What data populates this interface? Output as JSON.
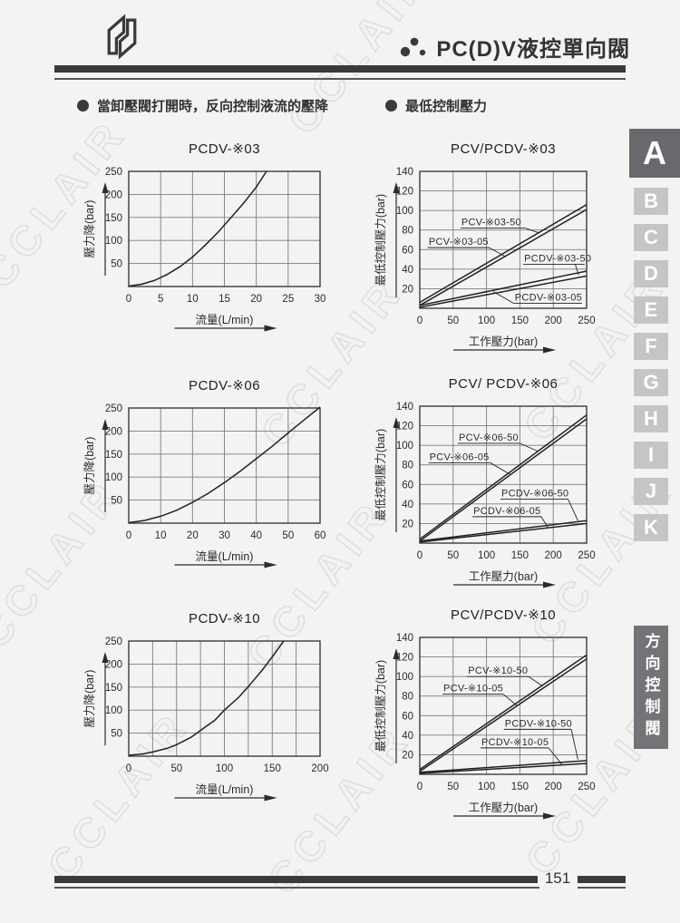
{
  "page": {
    "watermark_text": "CCLAIR"
  },
  "header": {
    "title": "PC(D)V液控單向閥"
  },
  "section_headers": [
    {
      "text": "當卸壓閥打開時，反向控制液流的壓降"
    },
    {
      "text": "最低控制壓力"
    }
  ],
  "sidebar": {
    "tabs": [
      {
        "label": "A",
        "active": true
      },
      {
        "label": "B",
        "active": false
      },
      {
        "label": "C",
        "active": false
      },
      {
        "label": "D",
        "active": false
      },
      {
        "label": "E",
        "active": false
      },
      {
        "label": "F",
        "active": false
      },
      {
        "label": "G",
        "active": false
      },
      {
        "label": "H",
        "active": false
      },
      {
        "label": "I",
        "active": false
      },
      {
        "label": "J",
        "active": false
      },
      {
        "label": "K",
        "active": false
      }
    ],
    "category_label": "方向控制閥"
  },
  "footer": {
    "page_number": "151"
  },
  "chart_data": [
    {
      "id": "pcdv-03",
      "type": "line",
      "title": "PCDV-※03",
      "xlabel": "流量(L/min)",
      "ylabel": "壓力降(bar)",
      "xlim": [
        0,
        30
      ],
      "ylim": [
        0,
        250
      ],
      "xticks": [
        0,
        5,
        10,
        15,
        20,
        25,
        30
      ],
      "yticks": [
        50,
        100,
        150,
        200,
        250
      ],
      "grid": true,
      "plot_size": [
        211,
        127
      ],
      "series": [
        {
          "name": "PCDV-※03",
          "points": [
            [
              0,
              1
            ],
            [
              2,
              5
            ],
            [
              4,
              13
            ],
            [
              6,
              26
            ],
            [
              8,
              43
            ],
            [
              10,
              64
            ],
            [
              12,
              90
            ],
            [
              14,
              118
            ],
            [
              16,
              149
            ],
            [
              18,
              181
            ],
            [
              20,
              216
            ],
            [
              21.6,
              250
            ]
          ]
        }
      ],
      "labels": []
    },
    {
      "id": "pcv-pcdv-03",
      "type": "line",
      "title": "PCV/PCDV-※03",
      "xlabel": "工作壓力(bar)",
      "ylabel": "最低控制壓力(bar)",
      "xlim": [
        0,
        250
      ],
      "ylim": [
        0,
        140
      ],
      "xticks": [
        0,
        50,
        100,
        150,
        200,
        250
      ],
      "yticks": [
        20,
        40,
        60,
        80,
        100,
        120,
        140
      ],
      "grid": true,
      "plot_size": [
        184,
        151
      ],
      "series": [
        {
          "name": "PCV-※03-50",
          "points": [
            [
              0,
              6
            ],
            [
              250,
              106
            ]
          ]
        },
        {
          "name": "PCV-※03-05",
          "points": [
            [
              0,
              3
            ],
            [
              250,
              101
            ]
          ]
        },
        {
          "name": "PCDV-※03-50",
          "points": [
            [
              0,
              3
            ],
            [
              250,
              38
            ]
          ]
        },
        {
          "name": "PCDV-※03-05",
          "points": [
            [
              0,
              1
            ],
            [
              250,
              33
            ]
          ]
        }
      ],
      "labels": [
        {
          "text": "PCV-※03-50",
          "underline": [
            [
              61,
              82
            ],
            [
              158,
              82
            ]
          ],
          "leader": [
            [
              158,
              82
            ],
            [
              179,
              77
            ]
          ]
        },
        {
          "text": "PCV-※03-05",
          "underline": [
            [
              12,
              62
            ],
            [
              104,
              62
            ]
          ],
          "leader": [
            [
              104,
              62
            ],
            [
              128,
              53
            ]
          ]
        },
        {
          "text": "PCDV-※03-50",
          "underline": [
            [
              155,
              45
            ],
            [
              247,
              45
            ]
          ],
          "leader": [
            [
              233,
              45
            ],
            [
              238,
              34
            ]
          ]
        },
        {
          "text": "PCDV-※03-05",
          "underline": [
            [
              141,
              5
            ],
            [
              243,
              5
            ]
          ],
          "leader": [
            [
              141,
              5
            ],
            [
              110,
              17
            ]
          ]
        }
      ]
    },
    {
      "id": "pcdv-06",
      "type": "line",
      "title": "PCDV-※06",
      "xlabel": "流量(L/min)",
      "ylabel": "壓力降(bar)",
      "xlim": [
        0,
        60
      ],
      "ylim": [
        0,
        250
      ],
      "xticks": [
        0,
        10,
        20,
        30,
        40,
        50,
        60
      ],
      "yticks": [
        50,
        100,
        150,
        200,
        250
      ],
      "grid": true,
      "plot_size": [
        211,
        127
      ],
      "series": [
        {
          "name": "PCDV-※06",
          "points": [
            [
              0,
              1
            ],
            [
              5,
              6
            ],
            [
              10,
              15
            ],
            [
              15,
              28
            ],
            [
              20,
              45
            ],
            [
              25,
              65
            ],
            [
              30,
              88
            ],
            [
              35,
              113
            ],
            [
              40,
              140
            ],
            [
              45,
              167
            ],
            [
              50,
              196
            ],
            [
              55,
              224
            ],
            [
              60,
              252
            ]
          ]
        }
      ],
      "labels": []
    },
    {
      "id": "pcv-pcdv-06",
      "type": "line",
      "title": "PCV/ PCDV-※06",
      "xlabel": "工作壓力(bar)",
      "ylabel": "最低控制壓力(bar)",
      "xlim": [
        0,
        250
      ],
      "ylim": [
        0,
        140
      ],
      "xticks": [
        0,
        50,
        100,
        150,
        200,
        250
      ],
      "yticks": [
        20,
        40,
        60,
        80,
        100,
        120,
        140
      ],
      "grid": true,
      "plot_size": [
        184,
        151
      ],
      "series": [
        {
          "name": "PCV-※06-50",
          "points": [
            [
              0,
              4
            ],
            [
              250,
              131
            ]
          ]
        },
        {
          "name": "PCV-※06-05",
          "points": [
            [
              0,
              2
            ],
            [
              250,
              127
            ]
          ]
        },
        {
          "name": "PCDV-※06-50",
          "points": [
            [
              0,
              2
            ],
            [
              250,
              23
            ]
          ]
        },
        {
          "name": "PCDV-※06-05",
          "points": [
            [
              0,
              1
            ],
            [
              250,
              20
            ]
          ]
        }
      ],
      "labels": [
        {
          "text": "PCV-※06-50",
          "underline": [
            [
              57,
              102
            ],
            [
              150,
              102
            ]
          ],
          "leader": [
            [
              150,
              102
            ],
            [
              177,
              94
            ]
          ]
        },
        {
          "text": "PCV-※06-05",
          "underline": [
            [
              13,
              82
            ],
            [
              106,
              82
            ]
          ],
          "leader": [
            [
              106,
              82
            ],
            [
              136,
              70
            ]
          ]
        },
        {
          "text": "PCDV-※06-50",
          "underline": [
            [
              121,
              45
            ],
            [
              222,
              45
            ]
          ],
          "leader": [
            [
              222,
              45
            ],
            [
              237,
              23
            ]
          ]
        },
        {
          "text": "PCDV-※06-05",
          "underline": [
            [
              79,
              27
            ],
            [
              182,
              27
            ]
          ],
          "leader": [
            [
              182,
              27
            ],
            [
              192,
              16
            ]
          ]
        }
      ]
    },
    {
      "id": "pcdv-10",
      "type": "line",
      "title": "PCDV-※10",
      "xlabel": "流量(L/min)",
      "ylabel": "壓力降(bar)",
      "xlim": [
        0,
        200
      ],
      "ylim": [
        0,
        250
      ],
      "xticks": [
        0,
        50,
        100,
        150,
        200
      ],
      "xgridlines": [
        25,
        50,
        75,
        100,
        125,
        150,
        175
      ],
      "yticks": [
        50,
        100,
        150,
        200,
        250
      ],
      "grid": true,
      "plot_size": [
        211,
        127
      ],
      "series": [
        {
          "name": "PCDV-※10",
          "points": [
            [
              0,
              2
            ],
            [
              15,
              5
            ],
            [
              25,
              9
            ],
            [
              40,
              17
            ],
            [
              50,
              25
            ],
            [
              65,
              41
            ],
            [
              75,
              56
            ],
            [
              90,
              78
            ],
            [
              100,
              100
            ],
            [
              115,
              128
            ],
            [
              125,
              151
            ],
            [
              140,
              188
            ],
            [
              150,
              216
            ],
            [
              162,
              250
            ]
          ]
        }
      ],
      "labels": []
    },
    {
      "id": "pcv-pcdv-10",
      "type": "line",
      "title": "PCV/PCDV-※10",
      "xlabel": "工作壓力(bar)",
      "ylabel": "最低控制壓力(bar)",
      "xlim": [
        0,
        250
      ],
      "ylim": [
        0,
        140
      ],
      "xticks": [
        0,
        50,
        100,
        150,
        200,
        250
      ],
      "yticks": [
        20,
        40,
        60,
        80,
        100,
        120,
        140
      ],
      "grid": true,
      "plot_size": [
        184,
        151
      ],
      "series": [
        {
          "name": "PCV-※10-50",
          "points": [
            [
              0,
              5
            ],
            [
              250,
              122
            ]
          ]
        },
        {
          "name": "PCV-※10-05",
          "points": [
            [
              0,
              3
            ],
            [
              250,
              118
            ]
          ]
        },
        {
          "name": "PCDV-※10-50",
          "points": [
            [
              0,
              2
            ],
            [
              250,
              14
            ]
          ]
        },
        {
          "name": "PCDV-※10-05",
          "points": [
            [
              0,
              1
            ],
            [
              250,
              11
            ]
          ]
        }
      ],
      "labels": [
        {
          "text": "PCV-※10-50",
          "underline": [
            [
              71,
              100
            ],
            [
              163,
              100
            ]
          ],
          "leader": [
            [
              163,
              100
            ],
            [
              184,
              90
            ]
          ]
        },
        {
          "text": "PCV-※10-05",
          "underline": [
            [
              34,
              82
            ],
            [
              125,
              82
            ]
          ],
          "leader": [
            [
              125,
              82
            ],
            [
              146,
              70
            ]
          ]
        },
        {
          "text": "PCDV-※10-50",
          "underline": [
            [
              126,
              46
            ],
            [
              227,
              46
            ]
          ],
          "leader": [
            [
              227,
              46
            ],
            [
              237,
              15
            ]
          ]
        },
        {
          "text": "PCDV-※10-05",
          "underline": [
            [
              91,
              27
            ],
            [
              193,
              27
            ]
          ],
          "leader": [
            [
              193,
              27
            ],
            [
              213,
              10
            ]
          ]
        }
      ]
    }
  ]
}
